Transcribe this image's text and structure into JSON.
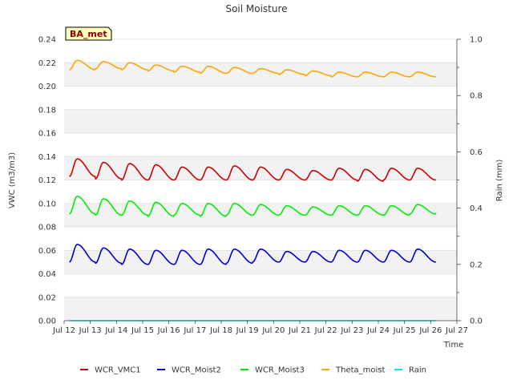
{
  "chart_data": {
    "type": "line",
    "title": "Soil Moisture",
    "xlabel": "Time",
    "ylabel": "VWC (m3/m3)",
    "y2label": "Rain (mm)",
    "badge": "BA_met",
    "xlim": [
      12,
      27
    ],
    "ylim": [
      0,
      0.24
    ],
    "y2lim": [
      0,
      1.0
    ],
    "x_ticks": [
      {
        "value": 12,
        "label": "Jul 12"
      },
      {
        "value": 13,
        "label": "Jul 13"
      },
      {
        "value": 14,
        "label": "Jul 14"
      },
      {
        "value": 15,
        "label": "Jul 15"
      },
      {
        "value": 16,
        "label": "Jul 16"
      },
      {
        "value": 17,
        "label": "Jul 17"
      },
      {
        "value": 18,
        "label": "Jul 18"
      },
      {
        "value": 19,
        "label": "Jul 19"
      },
      {
        "value": 20,
        "label": "Jul 20"
      },
      {
        "value": 21,
        "label": "Jul 21"
      },
      {
        "value": 22,
        "label": "Jul 22"
      },
      {
        "value": 23,
        "label": "Jul 23"
      },
      {
        "value": 24,
        "label": "Jul 24"
      },
      {
        "value": 25,
        "label": "Jul 25"
      },
      {
        "value": 26,
        "label": "Jul 26"
      },
      {
        "value": 27,
        "label": "Jul 27"
      }
    ],
    "y_ticks": [
      {
        "value": 0.0,
        "label": "0.00"
      },
      {
        "value": 0.02,
        "label": "0.02"
      },
      {
        "value": 0.04,
        "label": "0.04"
      },
      {
        "value": 0.06,
        "label": "0.06"
      },
      {
        "value": 0.08,
        "label": "0.08"
      },
      {
        "value": 0.1,
        "label": "0.10"
      },
      {
        "value": 0.12,
        "label": "0.12"
      },
      {
        "value": 0.14,
        "label": "0.14"
      },
      {
        "value": 0.16,
        "label": "0.16"
      },
      {
        "value": 0.18,
        "label": "0.18"
      },
      {
        "value": 0.2,
        "label": "0.20"
      },
      {
        "value": 0.22,
        "label": "0.22"
      },
      {
        "value": 0.24,
        "label": "0.24"
      }
    ],
    "y2_ticks": [
      {
        "value": 0.0,
        "label": "0.0"
      },
      {
        "value": 0.2,
        "label": "0.2"
      },
      {
        "value": 0.4,
        "label": "0.4"
      },
      {
        "value": 0.6,
        "label": "0.6"
      },
      {
        "value": 0.8,
        "label": "0.8"
      },
      {
        "value": 1.0,
        "label": "1.0"
      }
    ],
    "y2_minor_ticks": [
      0.1,
      0.3,
      0.5,
      0.7,
      0.9
    ],
    "x_start": 12.2,
    "x_end": 26.2,
    "series": [
      {
        "name": "WCR_VMC1",
        "color": "#cc0000",
        "axis": "left",
        "min": [
          0.123,
          0.121,
          0.12,
          0.12,
          0.12,
          0.12,
          0.12,
          0.12,
          0.12,
          0.12,
          0.12,
          0.119,
          0.12,
          0.12,
          0.12
        ],
        "max": [
          0.138,
          0.135,
          0.134,
          0.133,
          0.131,
          0.131,
          0.132,
          0.131,
          0.129,
          0.128,
          0.13,
          0.129,
          0.13,
          0.13,
          0.13
        ]
      },
      {
        "name": "WCR_Moist2",
        "color": "#0000cc",
        "axis": "left",
        "min": [
          0.05,
          0.049,
          0.048,
          0.048,
          0.048,
          0.048,
          0.049,
          0.05,
          0.05,
          0.05,
          0.05,
          0.05,
          0.05,
          0.05,
          0.05
        ],
        "max": [
          0.065,
          0.062,
          0.061,
          0.06,
          0.06,
          0.061,
          0.061,
          0.061,
          0.059,
          0.059,
          0.06,
          0.06,
          0.06,
          0.061,
          0.061
        ]
      },
      {
        "name": "WCR_Moist3",
        "color": "#00ee00",
        "axis": "left",
        "min": [
          0.091,
          0.09,
          0.09,
          0.089,
          0.09,
          0.089,
          0.09,
          0.09,
          0.09,
          0.09,
          0.09,
          0.09,
          0.09,
          0.091,
          0.092
        ],
        "max": [
          0.106,
          0.104,
          0.102,
          0.101,
          0.1,
          0.1,
          0.1,
          0.099,
          0.098,
          0.097,
          0.098,
          0.098,
          0.098,
          0.099,
          0.1
        ]
      },
      {
        "name": "Theta_moist",
        "color": "#ffa500",
        "axis": "left",
        "min": [
          0.214,
          0.215,
          0.214,
          0.213,
          0.212,
          0.211,
          0.211,
          0.211,
          0.21,
          0.209,
          0.208,
          0.208,
          0.208,
          0.208,
          0.208
        ],
        "max": [
          0.222,
          0.221,
          0.22,
          0.218,
          0.217,
          0.217,
          0.216,
          0.215,
          0.214,
          0.213,
          0.212,
          0.212,
          0.212,
          0.212,
          0.212
        ]
      },
      {
        "name": "Rain",
        "color": "#00e5ee",
        "axis": "right",
        "min": [
          0,
          0,
          0,
          0,
          0,
          0,
          0,
          0,
          0,
          0,
          0,
          0,
          0,
          0,
          0
        ],
        "max": [
          0,
          0,
          0,
          0,
          0,
          0,
          0,
          0,
          0,
          0,
          0,
          0,
          0,
          0,
          0
        ]
      }
    ],
    "legend_position": "bottom-center",
    "grid": "horizontal-bands"
  }
}
